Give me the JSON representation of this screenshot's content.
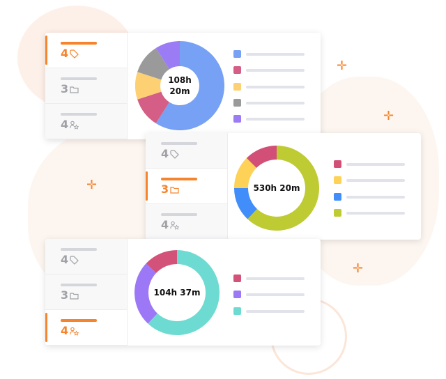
{
  "accent_color": "#f5842c",
  "cards": [
    {
      "tabs": [
        {
          "count": "4",
          "icon": "tag-icon",
          "selected": true
        },
        {
          "count": "3",
          "icon": "folder-icon",
          "selected": false
        },
        {
          "count": "4",
          "icon": "user-group-icon",
          "selected": false
        }
      ],
      "total": "108h",
      "total2": "20m",
      "slices": [
        {
          "color": "#76a1f4",
          "percent": 59
        },
        {
          "color": "#d45e86",
          "percent": 11
        },
        {
          "color": "#fdd073",
          "percent": 10
        },
        {
          "color": "#9a9a9a",
          "percent": 11
        },
        {
          "color": "#9b7cf5",
          "percent": 9
        }
      ]
    },
    {
      "tabs": [
        {
          "count": "4",
          "icon": "tag-icon",
          "selected": false
        },
        {
          "count": "3",
          "icon": "folder-icon",
          "selected": true
        },
        {
          "count": "4",
          "icon": "user-group-icon",
          "selected": false
        }
      ],
      "total": "530h 20m",
      "slices": [
        {
          "color": "#bfcb33",
          "percent": 62
        },
        {
          "color": "#418dfa",
          "percent": 13
        },
        {
          "color": "#fdd257",
          "percent": 12.5
        },
        {
          "color": "#d24f78",
          "percent": 12.5
        }
      ]
    },
    {
      "tabs": [
        {
          "count": "4",
          "icon": "tag-icon",
          "selected": false
        },
        {
          "count": "3",
          "icon": "folder-icon",
          "selected": false
        },
        {
          "count": "4",
          "icon": "user-group-icon",
          "selected": true
        }
      ],
      "total": "104h 37m",
      "slices": [
        {
          "color": "#6edbd2",
          "percent": 62
        },
        {
          "color": "#9d78f6",
          "percent": 25
        },
        {
          "color": "#d35279",
          "percent": 13
        }
      ]
    }
  ],
  "legend_order": [
    [
      0,
      1,
      2,
      3,
      4
    ],
    [
      3,
      2,
      1,
      0
    ],
    [
      2,
      1,
      0
    ]
  ]
}
